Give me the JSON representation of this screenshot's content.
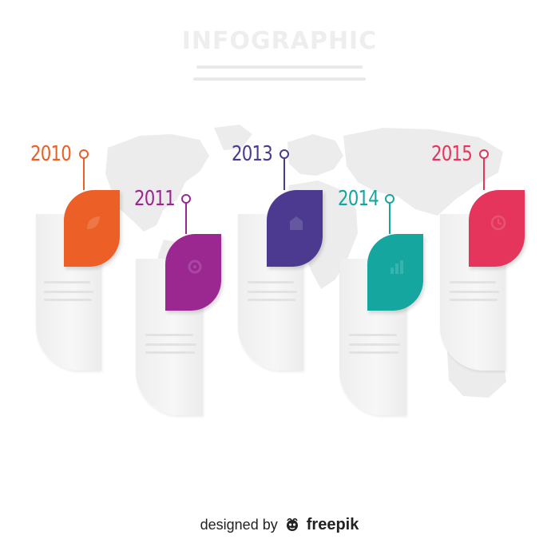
{
  "header": {
    "title": "INFOGRAPHIC"
  },
  "colors": {
    "step_2010": "#EC5F26",
    "step_2011": "#9B2791",
    "step_2013": "#4B3A8F",
    "step_2014": "#15A6A0",
    "step_2015": "#E5355C",
    "card": "#EEEEEE",
    "map": "#EAEAEA"
  },
  "timeline": {
    "steps": [
      {
        "year": "2010",
        "icon": "leaf-icon"
      },
      {
        "year": "2011",
        "icon": "gear-icon"
      },
      {
        "year": "2013",
        "icon": "building-icon"
      },
      {
        "year": "2014",
        "icon": "chart-icon"
      },
      {
        "year": "2015",
        "icon": "clock-icon"
      }
    ]
  },
  "footer": {
    "prefix": "designed by",
    "brand": "freepik",
    "logo_icon": "freepik-logo-icon"
  }
}
